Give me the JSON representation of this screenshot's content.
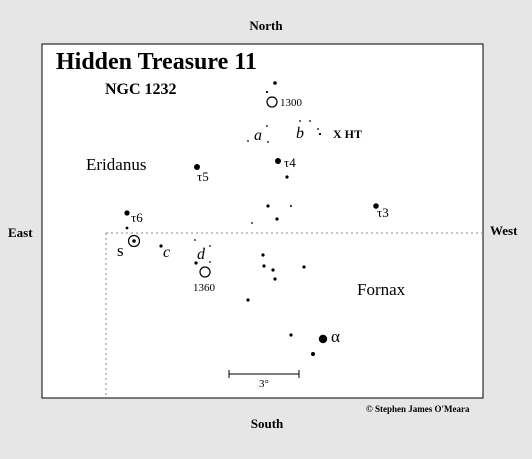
{
  "directions": {
    "north": "North",
    "south": "South",
    "east": "East",
    "west": "West"
  },
  "title": "Hidden Treasure 11",
  "object": "NGC 1232",
  "constellations": {
    "eridanus": "Eridanus",
    "fornax": "Fornax"
  },
  "galaxies": {
    "ngc1300": "1300",
    "ngc1360": "1360"
  },
  "star_labels": {
    "tau4": "τ4",
    "tau5": "τ5",
    "tau6": "τ6",
    "tau3": "τ3",
    "alpha": "α",
    "s": "s"
  },
  "markers": {
    "a": "a",
    "b": "b",
    "c": "c",
    "d": "d"
  },
  "target_label": "X HT",
  "scale": "3°",
  "credit": "© Stephen James O'Meara",
  "colors": {
    "background": "#e6e6e6",
    "chart_area": "#ffffff",
    "ink": "#000000",
    "guide_line": "#888888"
  }
}
